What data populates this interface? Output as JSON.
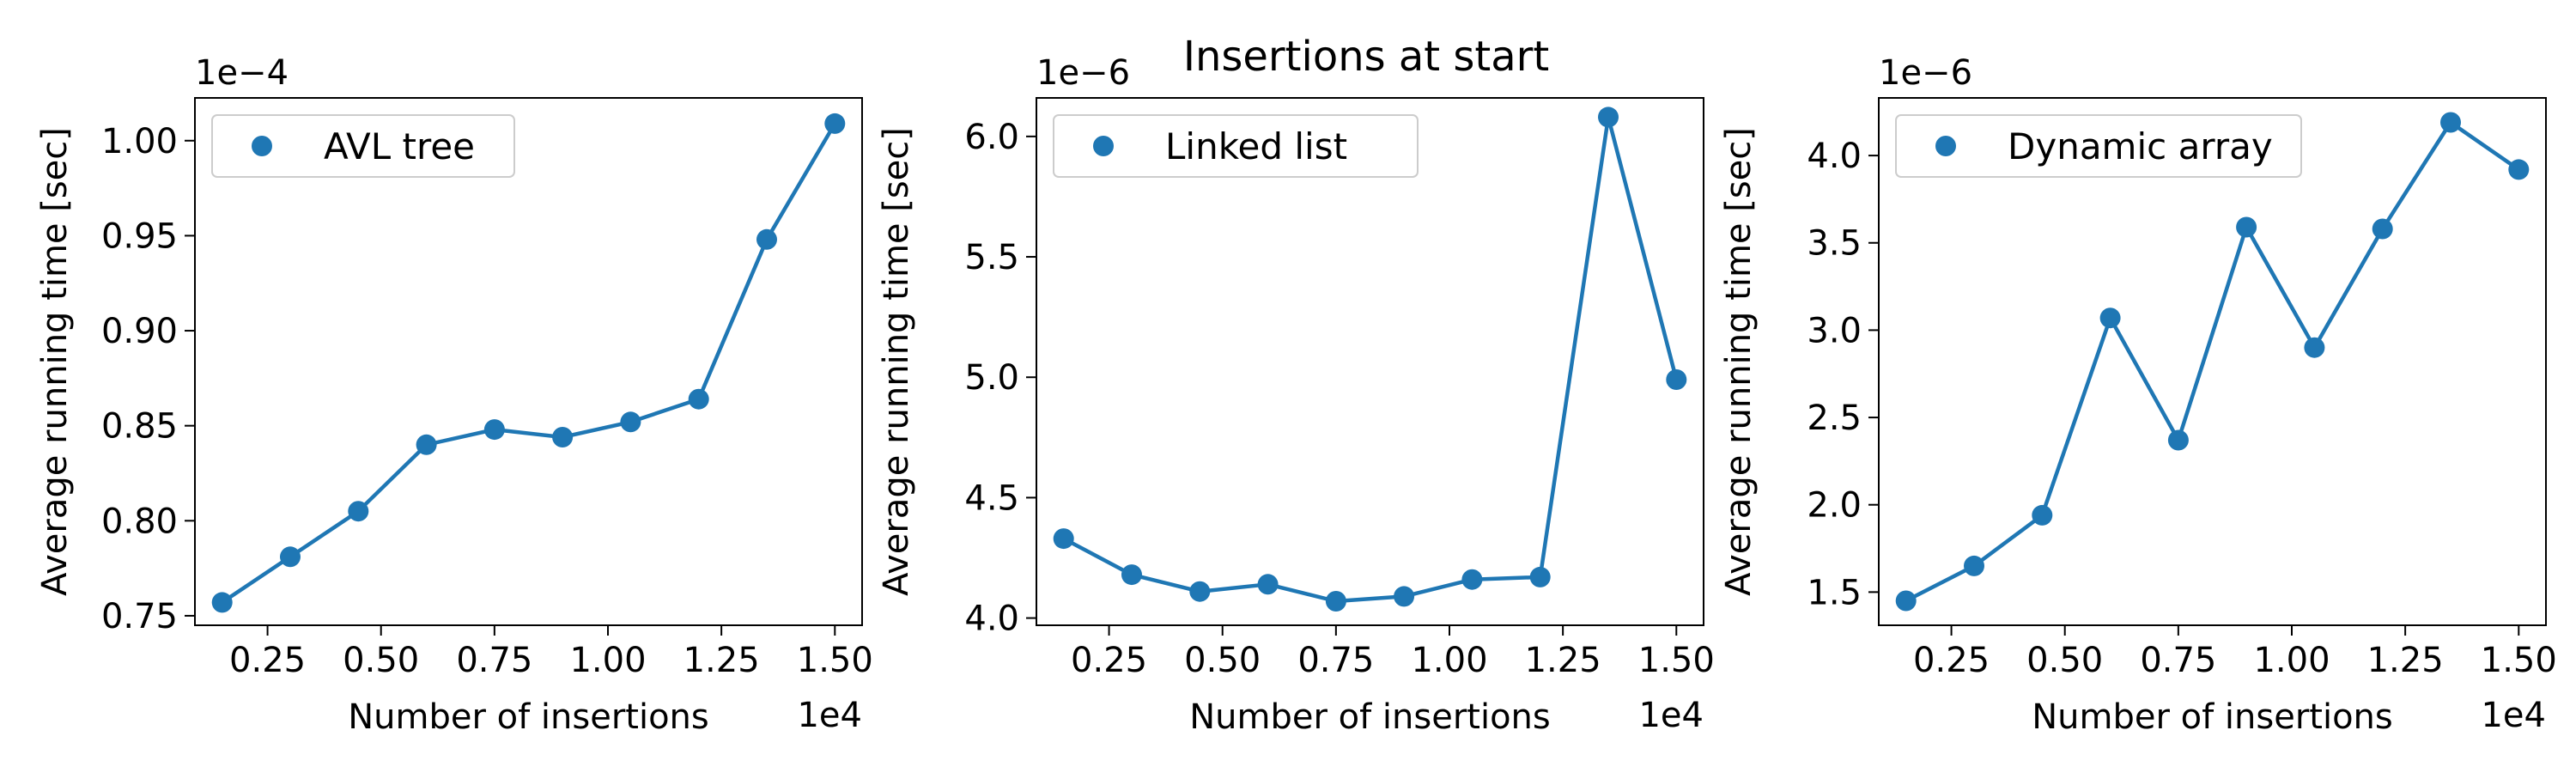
{
  "figure": {
    "title": "Insertions at start"
  },
  "colors": {
    "series": "#1f77b4",
    "axis": "#000000",
    "legend_border": "#cccccc"
  },
  "chart_data": [
    {
      "type": "line",
      "xlabel": "Number of insertions",
      "ylabel": "Average running time [sec]",
      "x_offset_text": "1e4",
      "y_offset_text": "1e−4",
      "x_scale": 10000,
      "y_scale": 0.0001,
      "xlim": [
        0.09,
        1.56
      ],
      "ylim": [
        0.745,
        1.0225
      ],
      "xticks": [
        0.25,
        0.5,
        0.75,
        1.0,
        1.25,
        1.5
      ],
      "xtick_labels": [
        "0.25",
        "0.50",
        "0.75",
        "1.00",
        "1.25",
        "1.50"
      ],
      "yticks": [
        0.75,
        0.8,
        0.85,
        0.9,
        0.95,
        1.0
      ],
      "ytick_labels": [
        "0.75",
        "0.80",
        "0.85",
        "0.90",
        "0.95",
        "1.00"
      ],
      "grid": false,
      "legend": "top-left",
      "series": [
        {
          "name": "AVL tree",
          "x": [
            0.15,
            0.3,
            0.45,
            0.6,
            0.75,
            0.9,
            1.05,
            1.2,
            1.35,
            1.5
          ],
          "values": [
            0.757,
            0.781,
            0.805,
            0.84,
            0.848,
            0.844,
            0.852,
            0.864,
            0.948,
            1.009
          ]
        }
      ]
    },
    {
      "type": "line",
      "xlabel": "Number of insertions",
      "ylabel": "Average running time [sec]",
      "x_offset_text": "1e4",
      "y_offset_text": "1e−6",
      "x_scale": 10000,
      "y_scale": 1e-06,
      "xlim": [
        0.09,
        1.56
      ],
      "ylim": [
        3.97,
        6.16
      ],
      "xticks": [
        0.25,
        0.5,
        0.75,
        1.0,
        1.25,
        1.5
      ],
      "xtick_labels": [
        "0.25",
        "0.50",
        "0.75",
        "1.00",
        "1.25",
        "1.50"
      ],
      "yticks": [
        4.0,
        4.5,
        5.0,
        5.5,
        6.0
      ],
      "ytick_labels": [
        "4.0",
        "4.5",
        "5.0",
        "5.5",
        "6.0"
      ],
      "grid": false,
      "legend": "top-left",
      "series": [
        {
          "name": "Linked list",
          "x": [
            0.15,
            0.3,
            0.45,
            0.6,
            0.75,
            0.9,
            1.05,
            1.2,
            1.35,
            1.5
          ],
          "values": [
            4.33,
            4.18,
            4.11,
            4.14,
            4.07,
            4.09,
            4.16,
            4.17,
            6.08,
            4.99
          ]
        }
      ]
    },
    {
      "type": "line",
      "xlabel": "Number of insertions",
      "ylabel": "Average running time [sec]",
      "x_offset_text": "1e4",
      "y_offset_text": "1e−6",
      "x_scale": 10000,
      "y_scale": 1e-06,
      "xlim": [
        0.09,
        1.56
      ],
      "ylim": [
        1.31,
        4.33
      ],
      "xticks": [
        0.25,
        0.5,
        0.75,
        1.0,
        1.25,
        1.5
      ],
      "xtick_labels": [
        "0.25",
        "0.50",
        "0.75",
        "1.00",
        "1.25",
        "1.50"
      ],
      "yticks": [
        1.5,
        2.0,
        2.5,
        3.0,
        3.5,
        4.0
      ],
      "ytick_labels": [
        "1.5",
        "2.0",
        "2.5",
        "3.0",
        "3.5",
        "4.0"
      ],
      "grid": false,
      "legend": "top-left",
      "series": [
        {
          "name": "Dynamic array",
          "x": [
            0.15,
            0.3,
            0.45,
            0.6,
            0.75,
            0.9,
            1.05,
            1.2,
            1.35,
            1.5
          ],
          "values": [
            1.45,
            1.65,
            1.94,
            3.07,
            2.37,
            3.59,
            2.9,
            3.58,
            4.19,
            3.92
          ]
        }
      ]
    }
  ]
}
